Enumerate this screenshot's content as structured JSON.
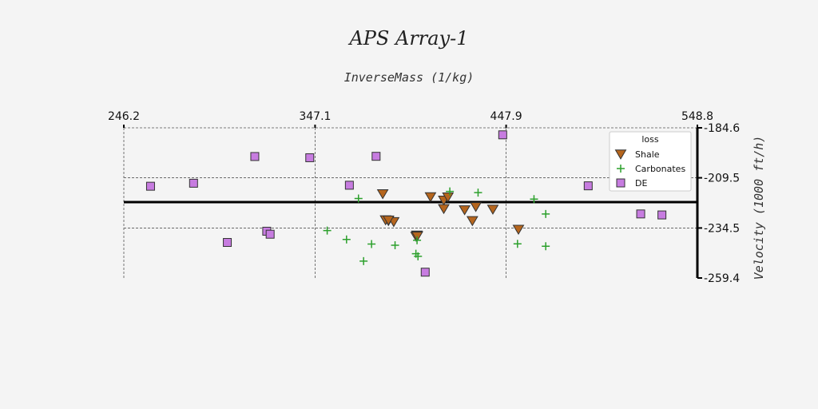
{
  "chart_data": {
    "type": "scatter",
    "title": "APS Array-1",
    "xlabel": "InverseMass (1/kg)",
    "ylabel": "Velocity (1000 ft/h)",
    "xlim": [
      246.2,
      548.8
    ],
    "ylim": [
      -259.4,
      -184.6
    ],
    "x_ticks": [
      "246.2",
      "347.1",
      "447.9",
      "548.8"
    ],
    "y_ticks": [
      "-184.6",
      "-209.5",
      "-234.5",
      "-259.4"
    ],
    "x_tick_values": [
      246.2,
      347.1,
      447.9,
      548.8
    ],
    "y_tick_values": [
      -184.6,
      -209.5,
      -234.5,
      -259.4
    ],
    "reference_line_y": -221.6,
    "grid": true,
    "legend": {
      "title": "loss",
      "position": "upper-right"
    },
    "series": [
      {
        "name": "Shale",
        "marker": "triangle-down",
        "color": "#b5651d",
        "points": [
          [
            385.8,
            -230.9
          ],
          [
            388.6,
            -231.4
          ],
          [
            384.3,
            -230.5
          ],
          [
            400.8,
            -238.1
          ],
          [
            400.4,
            -238.7
          ],
          [
            385.8,
            -230.6
          ],
          [
            401.0,
            -238.3
          ],
          [
            401.0,
            -238.6
          ],
          [
            382.8,
            -217.5
          ],
          [
            415.0,
            -220.7
          ],
          [
            417.2,
            -219.1
          ],
          [
            426.0,
            -225.5
          ],
          [
            430.1,
            -230.9
          ],
          [
            415.0,
            -224.9
          ],
          [
            431.9,
            -223.9
          ],
          [
            440.9,
            -225.2
          ],
          [
            454.4,
            -235.2
          ],
          [
            408.0,
            -219.0
          ]
        ]
      },
      {
        "name": "Carbonates",
        "marker": "plus",
        "color": "#2ca02c",
        "points": [
          [
            370.0,
            -219.8
          ],
          [
            418.2,
            -216.3
          ],
          [
            433.1,
            -216.9
          ],
          [
            462.6,
            -220.1
          ],
          [
            468.8,
            -227.5
          ],
          [
            353.5,
            -235.8
          ],
          [
            363.7,
            -240.2
          ],
          [
            376.9,
            -242.5
          ],
          [
            389.3,
            -243.1
          ],
          [
            400.9,
            -240.6
          ],
          [
            372.7,
            -251.0
          ],
          [
            401.4,
            -248.6
          ],
          [
            453.9,
            -242.4
          ],
          [
            468.8,
            -243.6
          ],
          [
            400.3,
            -247.3
          ]
        ]
      },
      {
        "name": "DE",
        "marker": "square",
        "color": "#c77ce0",
        "points": [
          [
            260.3,
            -213.7
          ],
          [
            283.0,
            -212.2
          ],
          [
            315.3,
            -198.9
          ],
          [
            344.3,
            -199.5
          ],
          [
            365.2,
            -213.2
          ],
          [
            379.3,
            -198.8
          ],
          [
            446.1,
            -188.1
          ],
          [
            300.8,
            -241.7
          ],
          [
            321.6,
            -236.1
          ],
          [
            323.4,
            -237.6
          ],
          [
            405.2,
            -256.5
          ],
          [
            491.2,
            -213.5
          ],
          [
            518.9,
            -227.5
          ],
          [
            530.1,
            -228.0
          ]
        ]
      }
    ]
  }
}
